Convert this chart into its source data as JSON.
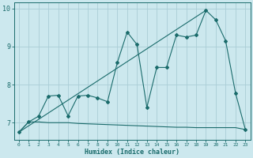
{
  "title": "",
  "xlabel": "Humidex (Indice chaleur)",
  "background_color": "#cce8ee",
  "grid_color": "#aacdd6",
  "line_color": "#1a6b6b",
  "xlim": [
    -0.5,
    23.5
  ],
  "ylim": [
    6.55,
    10.15
  ],
  "xticks": [
    0,
    1,
    2,
    3,
    4,
    5,
    6,
    7,
    8,
    9,
    10,
    11,
    12,
    13,
    14,
    15,
    16,
    17,
    18,
    19,
    20,
    21,
    22,
    23
  ],
  "yticks": [
    7,
    8,
    9,
    10
  ],
  "line1_x": [
    0,
    1,
    2,
    3,
    4,
    5,
    6,
    7,
    8,
    9,
    10,
    11,
    12,
    13,
    14,
    15,
    16,
    17,
    18,
    19,
    20,
    21,
    22,
    23
  ],
  "line1_y": [
    6.75,
    7.02,
    7.02,
    7.0,
    7.0,
    7.0,
    6.98,
    6.97,
    6.96,
    6.95,
    6.94,
    6.93,
    6.92,
    6.91,
    6.9,
    6.89,
    6.88,
    6.88,
    6.87,
    6.87,
    6.87,
    6.87,
    6.87,
    6.82
  ],
  "line2_x": [
    0,
    1,
    2,
    3,
    4,
    5,
    6,
    7,
    8,
    9,
    10,
    11,
    12,
    13,
    14,
    15,
    16,
    17,
    18,
    19,
    20,
    21,
    22,
    23
  ],
  "line2_y": [
    6.75,
    7.02,
    7.17,
    7.7,
    7.72,
    7.18,
    7.7,
    7.72,
    7.65,
    7.55,
    8.58,
    9.38,
    9.05,
    7.4,
    8.45,
    8.45,
    9.3,
    9.25,
    9.3,
    9.95,
    9.7,
    9.15,
    7.78,
    6.82
  ],
  "line3_x": [
    0,
    19
  ],
  "line3_y": [
    6.75,
    9.95
  ]
}
